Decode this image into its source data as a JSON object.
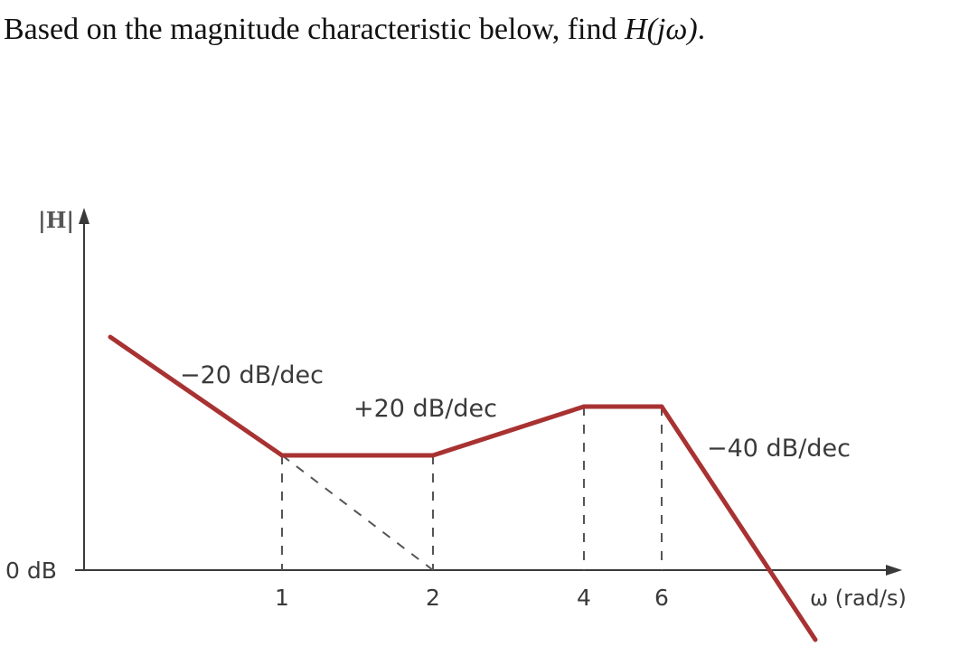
{
  "question": {
    "text": "Based on the magnitude characteristic below, find ",
    "math": "H(jω)",
    "end": "."
  },
  "chart_data": {
    "type": "line",
    "title": "",
    "ylabel": "|H|",
    "xlabel": "ω (rad/s)",
    "y_reference_label": "0 dB",
    "x_ticks": [
      "1",
      "2",
      "4",
      "6"
    ],
    "series": [
      {
        "color": "#a83232",
        "segments": [
          {
            "from_w": 0.35,
            "to_w": 1,
            "slope_db_per_dec": -20,
            "label": "−20 dB/dec"
          },
          {
            "from_w": 1,
            "to_w": 2,
            "slope_db_per_dec": 0
          },
          {
            "from_w": 2,
            "to_w": 4,
            "slope_db_per_dec": 20,
            "label": "+20 dB/dec"
          },
          {
            "from_w": 4,
            "to_w": 6,
            "slope_db_per_dec": 0
          },
          {
            "from_w": 6,
            "to_w": 16,
            "slope_db_per_dec": -40,
            "label": "−40 dB/dec"
          }
        ]
      }
    ],
    "dashed_extension": {
      "from_w": 1,
      "to_w": 2,
      "slope_db_per_dec": -20
    },
    "colors": {
      "curve": "#a83232",
      "axis": "#3a3a3a",
      "dashed": "#555555"
    }
  }
}
